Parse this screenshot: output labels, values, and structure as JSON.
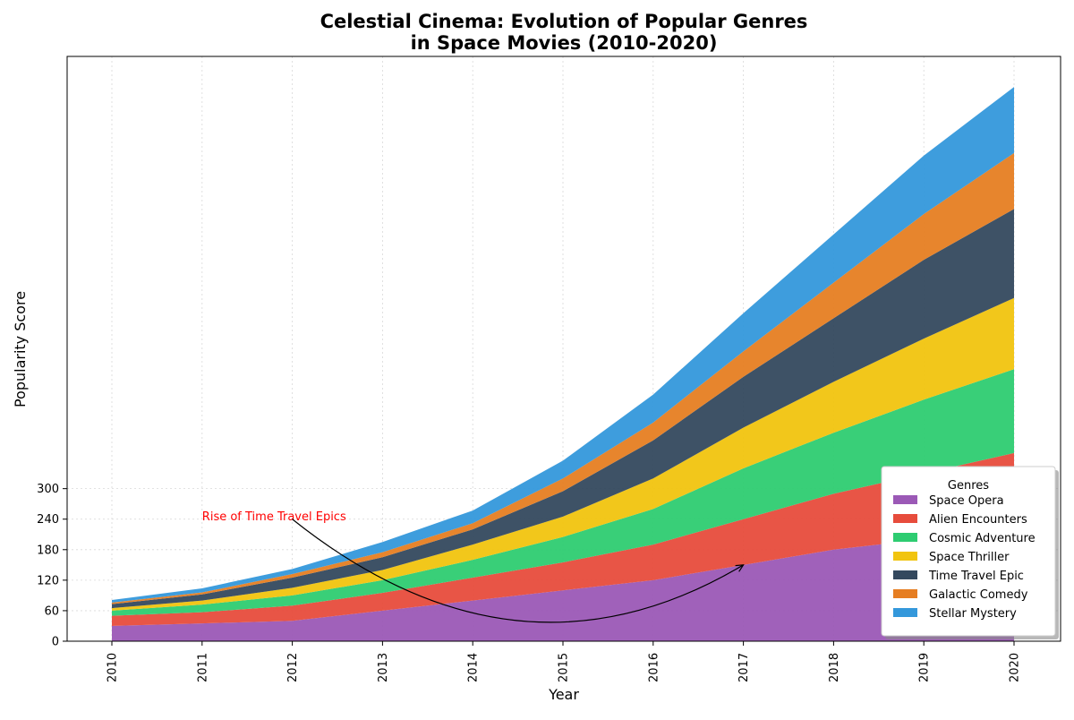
{
  "chart_data": {
    "type": "area",
    "stacked": true,
    "title_line1": "Celestial Cinema: Evolution of Popular Genres",
    "title_line2": "in Space Movies (2010-2020)",
    "xlabel": "Year",
    "ylabel": "Popularity Score",
    "x": [
      "2010",
      "2011",
      "2012",
      "2013",
      "2014",
      "2015",
      "2016",
      "2017",
      "2018",
      "2019",
      "2020"
    ],
    "yticks": [
      0,
      60,
      120,
      180,
      240,
      300
    ],
    "ylim": [
      0,
      1150
    ],
    "grid": true,
    "legend_title": "Genres",
    "legend_position": "lower-right",
    "series": [
      {
        "name": "Space Opera",
        "color": "#9b59b6",
        "values": [
          30,
          35,
          40,
          60,
          80,
          100,
          120,
          150,
          180,
          200,
          220
        ]
      },
      {
        "name": "Alien Encounters",
        "color": "#e74c3c",
        "values": [
          20,
          22,
          30,
          35,
          45,
          55,
          70,
          90,
          110,
          130,
          150
        ]
      },
      {
        "name": "Cosmic Adventure",
        "color": "#2ecc71",
        "values": [
          10,
          15,
          20,
          25,
          35,
          50,
          70,
          100,
          120,
          145,
          165
        ]
      },
      {
        "name": "Space Thriller",
        "color": "#f1c40f",
        "values": [
          5,
          8,
          15,
          20,
          30,
          40,
          60,
          80,
          100,
          120,
          140
        ]
      },
      {
        "name": "Time Travel Epic",
        "color": "#34495e",
        "values": [
          8,
          12,
          20,
          25,
          30,
          50,
          75,
          100,
          125,
          155,
          175
        ]
      },
      {
        "name": "Galactic Comedy",
        "color": "#e67e22",
        "values": [
          3,
          4,
          7,
          10,
          12,
          25,
          35,
          50,
          70,
          90,
          110
        ]
      },
      {
        "name": "Stellar Mystery",
        "color": "#3498db",
        "values": [
          5,
          8,
          10,
          20,
          25,
          35,
          55,
          75,
          95,
          115,
          130
        ]
      }
    ],
    "annotation": {
      "text": "Rise of Time Travel Epics",
      "color": "#ff0000",
      "text_at": {
        "x": "2011",
        "y": 248
      },
      "arrow_from": {
        "x": "2012",
        "y": 240
      },
      "arrow_to": {
        "x": "2017",
        "y": 150
      }
    }
  }
}
